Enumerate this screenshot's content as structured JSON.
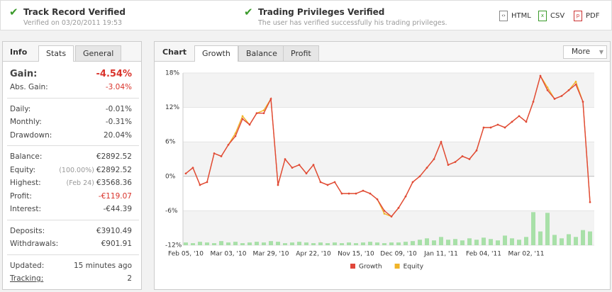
{
  "header": {
    "items": [
      {
        "title": "Track Record Verified",
        "subtitle": "Verified on 03/20/2011 19:53"
      },
      {
        "title": "Trading Privileges Verified",
        "subtitle": "The user has verified successfully his trading privileges."
      }
    ],
    "downloads": [
      "HTML",
      "CSV",
      "PDF"
    ]
  },
  "info": {
    "tabs": [
      "Info",
      "Stats",
      "General"
    ],
    "groups": [
      {
        "rows": [
          {
            "label": "Gain:",
            "value": "-4.54%",
            "color": "#d9332b"
          },
          {
            "label": "Abs. Gain:",
            "value": "-3.04%",
            "color": "#d9332b"
          }
        ]
      },
      {
        "rows": [
          {
            "label": "Daily:",
            "value": "-0.01%"
          },
          {
            "label": "Monthly:",
            "value": "-0.31%"
          },
          {
            "label": "Drawdown:",
            "value": "20.04%"
          }
        ]
      },
      {
        "rows": [
          {
            "label": "Balance:",
            "value": "€2892.52"
          },
          {
            "label": "Equity:",
            "note": "(100.00%)",
            "value": "€2892.52"
          },
          {
            "label": "Highest:",
            "note": "(Feb 24)",
            "value": "€3568.36"
          },
          {
            "label": "Profit:",
            "value": "-€119.07",
            "color": "#d9332b"
          },
          {
            "label": "Interest:",
            "value": "-€44.39"
          }
        ]
      },
      {
        "rows": [
          {
            "label": "Deposits:",
            "value": "€3910.49"
          },
          {
            "label": "Withdrawals:",
            "value": "€901.91"
          }
        ]
      },
      {
        "rows": [
          {
            "label": "Updated:",
            "value": "15 minutes ago"
          },
          {
            "label": "Tracking:",
            "value": "2"
          }
        ]
      }
    ]
  },
  "chart_panel": {
    "title": "Chart",
    "tabs": [
      "Growth",
      "Balance",
      "Profit"
    ],
    "more": "More"
  },
  "chart_data": {
    "type": "line",
    "categories": [
      "Feb 05, '10",
      null,
      null,
      null,
      null,
      null,
      "Mar 03, '10",
      null,
      null,
      null,
      null,
      null,
      "Mar 29, '10",
      null,
      null,
      null,
      null,
      null,
      "Apr 22, '10",
      null,
      null,
      null,
      null,
      null,
      "Nov 15, '10",
      null,
      null,
      null,
      null,
      null,
      "Dec 09, '10",
      null,
      null,
      null,
      null,
      null,
      "Jan 11, '11",
      null,
      null,
      null,
      null,
      null,
      "Feb 04, '11",
      null,
      null,
      null,
      null,
      null,
      "Mar 02, '11",
      null,
      null,
      null,
      null,
      null,
      null,
      null,
      null,
      null
    ],
    "series": [
      {
        "name": "Growth",
        "color": "#e0463a",
        "values": [
          0.5,
          1.5,
          -1.5,
          -1,
          4,
          3.5,
          5.5,
          7,
          10,
          9,
          11,
          11,
          13.5,
          -1.5,
          3,
          1.5,
          2,
          0.5,
          2,
          -1,
          -1.5,
          -1,
          -3,
          -3,
          -3,
          -2.5,
          -3,
          -4,
          -6,
          -7,
          -5.5,
          -3.5,
          -1,
          0,
          1.5,
          3,
          6,
          2,
          2.5,
          3.5,
          3,
          4.5,
          8.5,
          8.5,
          9,
          8.5,
          9.5,
          10.5,
          9.5,
          13,
          17.5,
          15,
          13.5,
          14,
          15,
          16,
          13,
          -4.5
        ]
      },
      {
        "name": "Equity",
        "color": "#f0b428",
        "values": [
          0.5,
          1.5,
          -1.5,
          -1,
          4,
          3.5,
          5.5,
          7.5,
          10.5,
          9,
          11,
          11.5,
          13.5,
          -1.5,
          3,
          1.5,
          2,
          0.5,
          2,
          -1,
          -1.5,
          -1,
          -3,
          -3,
          -3,
          -2.5,
          -3,
          -4,
          -6.5,
          -7,
          -5.5,
          -3.5,
          -1,
          0,
          1.5,
          3,
          6,
          2,
          2.5,
          3.5,
          3,
          4.5,
          8.5,
          8.5,
          9,
          8.5,
          9.5,
          10.5,
          9.5,
          13,
          17.5,
          15.5,
          13.5,
          14,
          15,
          16.5,
          13,
          -4.5
        ]
      }
    ],
    "bars": {
      "color": "#a8e0a8",
      "y2lim": [
        0,
        250
      ],
      "values": [
        4,
        3,
        5,
        4,
        3,
        6,
        4,
        5,
        3,
        4,
        5,
        4,
        6,
        5,
        3,
        4,
        5,
        4,
        3,
        4,
        3,
        4,
        3,
        4,
        3,
        4,
        5,
        4,
        3,
        4,
        4,
        5,
        6,
        8,
        10,
        7,
        12,
        8,
        9,
        7,
        10,
        8,
        11,
        9,
        7,
        14,
        10,
        8,
        12,
        48,
        20,
        47,
        15,
        10,
        16,
        12,
        22,
        20
      ]
    },
    "ylim": [
      -12,
      18
    ],
    "yticks": [
      {
        "value": -12,
        "label": "-12%"
      },
      {
        "value": -6,
        "label": "-6%"
      },
      {
        "value": 0,
        "label": "0%"
      },
      {
        "value": 6,
        "label": "6%"
      },
      {
        "value": 12,
        "label": "12%"
      },
      {
        "value": 18,
        "label": "18%"
      }
    ],
    "grid": true,
    "legend": "bottom"
  }
}
